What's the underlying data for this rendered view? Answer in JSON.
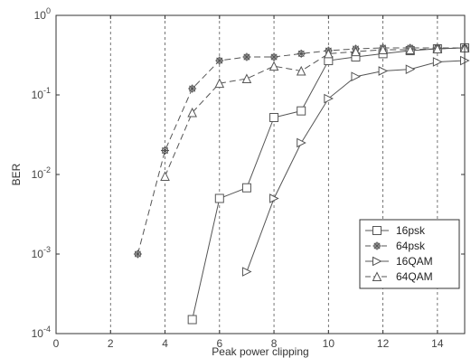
{
  "chart_data": {
    "type": "line",
    "title": "",
    "xlabel": "Peak power clipping",
    "ylabel": "BER",
    "xlim": [
      0,
      15
    ],
    "ylim": [
      0.0001,
      1
    ],
    "yscale": "log",
    "x_ticks": [
      0,
      2,
      4,
      6,
      8,
      10,
      12,
      14
    ],
    "x_tick_labels": [
      "0",
      "2",
      "4",
      "6",
      "8",
      "10",
      "12",
      "14"
    ],
    "y_ticks": [
      0.0001,
      0.001,
      0.01,
      0.1,
      1
    ],
    "y_tick_labels": [
      {
        "base": "10",
        "exp": "-4"
      },
      {
        "base": "10",
        "exp": "-3"
      },
      {
        "base": "10",
        "exp": "-2"
      },
      {
        "base": "10",
        "exp": "-1"
      },
      {
        "base": "10",
        "exp": "0"
      }
    ],
    "grid": "vertical-dashed",
    "legend_position": "lower-right",
    "series": [
      {
        "name": "16psk",
        "marker": "square",
        "line": "solid",
        "x": [
          5,
          6,
          7,
          8,
          9,
          10,
          11,
          12,
          13,
          14,
          15
        ],
        "y": [
          0.00015,
          0.005,
          0.0068,
          0.052,
          0.063,
          0.27,
          0.3,
          0.33,
          0.36,
          0.38,
          0.39
        ]
      },
      {
        "name": "64psk",
        "marker": "star",
        "line": "dashed",
        "x": [
          3,
          4,
          5,
          6,
          7,
          8,
          9,
          10,
          11,
          12,
          13,
          14,
          15
        ],
        "y": [
          0.001,
          0.02,
          0.12,
          0.27,
          0.3,
          0.3,
          0.33,
          0.36,
          0.38,
          0.39,
          0.39,
          0.39,
          0.39
        ]
      },
      {
        "name": "16QAM",
        "marker": "triangle-right",
        "line": "solid",
        "x": [
          7,
          8,
          9,
          10,
          11,
          12,
          13,
          14,
          15
        ],
        "y": [
          0.0006,
          0.005,
          0.025,
          0.09,
          0.17,
          0.2,
          0.21,
          0.26,
          0.27
        ]
      },
      {
        "name": "64QAM",
        "marker": "triangle-up",
        "line": "dashed",
        "x": [
          4,
          5,
          6,
          7,
          8,
          9,
          10,
          11,
          12,
          13,
          14,
          15
        ],
        "y": [
          0.0095,
          0.06,
          0.14,
          0.16,
          0.23,
          0.2,
          0.33,
          0.35,
          0.37,
          0.37,
          0.38,
          0.39
        ]
      }
    ],
    "colors": {
      "line": "#555555",
      "axis": "#333333",
      "grid": "#555555",
      "background": "#ffffff"
    }
  }
}
